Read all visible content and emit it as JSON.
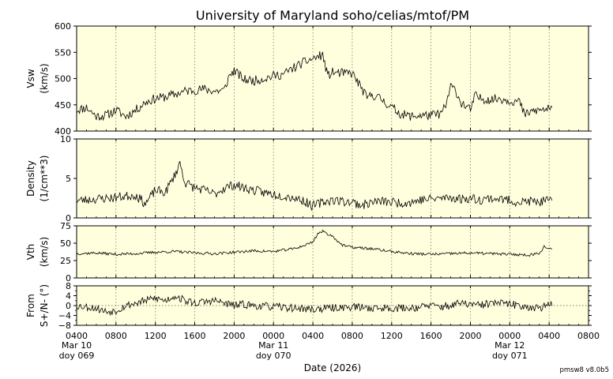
{
  "title": "University of Maryland  soho/celias/mtof/PM",
  "footer": "pmsw8 v8.0b5",
  "chart_data": {
    "type": "line",
    "xlabel": "Date (2026)",
    "x_unit": "hours from 2026-03-10 04:00",
    "xlim": [
      0,
      52
    ],
    "x_ticks": [
      0,
      4,
      8,
      12,
      16,
      20,
      24,
      28,
      32,
      36,
      40,
      44,
      48,
      52
    ],
    "x_tick_labels": [
      "0400",
      "0800",
      "1200",
      "1600",
      "2000",
      "0000",
      "0400",
      "0800",
      "1200",
      "1600",
      "2000",
      "0000",
      "0400",
      "0800"
    ],
    "date_labels": [
      {
        "x": 0,
        "lines": [
          "Mar 10",
          "doy 069"
        ]
      },
      {
        "x": 20,
        "lines": [
          "Mar 11",
          "doy 070"
        ]
      },
      {
        "x": 44,
        "lines": [
          "Mar 12",
          "doy 071"
        ]
      }
    ],
    "data_end_x": 48.3,
    "grid": "vertical dotted at every x tick",
    "background_color": "#ffffdd",
    "panels": [
      {
        "id": "vsw",
        "ylabel": [
          "Vsw",
          "(km/s)"
        ],
        "ylim": [
          400,
          600
        ],
        "yticks": [
          400,
          450,
          500,
          550,
          600
        ],
        "ytick_labels": [
          "400",
          "450",
          "500",
          "550",
          "600"
        ],
        "zero_line": false,
        "seed": 11,
        "noise": 9,
        "keypoints": [
          [
            0,
            440
          ],
          [
            1,
            445
          ],
          [
            2,
            428
          ],
          [
            3,
            430
          ],
          [
            4,
            440
          ],
          [
            5,
            428
          ],
          [
            6,
            440
          ],
          [
            7,
            455
          ],
          [
            8,
            462
          ],
          [
            9,
            465
          ],
          [
            10,
            470
          ],
          [
            11,
            476
          ],
          [
            12,
            478
          ],
          [
            13,
            480
          ],
          [
            14,
            476
          ],
          [
            15,
            478
          ],
          [
            15.5,
            505
          ],
          [
            16,
            515
          ],
          [
            17,
            498
          ],
          [
            18,
            496
          ],
          [
            19,
            500
          ],
          [
            20,
            505
          ],
          [
            21,
            508
          ],
          [
            22,
            520
          ],
          [
            23,
            530
          ],
          [
            24,
            538
          ],
          [
            25,
            545
          ],
          [
            25.5,
            505
          ],
          [
            26,
            512
          ],
          [
            27,
            510
          ],
          [
            28,
            510
          ],
          [
            29,
            480
          ],
          [
            29.5,
            462
          ],
          [
            30,
            470
          ],
          [
            31,
            460
          ],
          [
            32,
            445
          ],
          [
            33,
            432
          ],
          [
            34,
            428
          ],
          [
            35,
            430
          ],
          [
            36,
            430
          ],
          [
            37,
            433
          ],
          [
            37.5,
            448
          ],
          [
            38,
            485
          ],
          [
            38.5,
            478
          ],
          [
            39,
            455
          ],
          [
            40,
            440
          ],
          [
            40.5,
            468
          ],
          [
            41,
            462
          ],
          [
            42,
            460
          ],
          [
            43,
            462
          ],
          [
            44,
            458
          ],
          [
            45,
            456
          ],
          [
            45.5,
            430
          ],
          [
            46,
            436
          ],
          [
            47,
            440
          ],
          [
            48,
            442
          ],
          [
            48.3,
            440
          ]
        ]
      },
      {
        "id": "density",
        "ylabel": [
          "Density",
          "(1/cm**3)"
        ],
        "ylim": [
          0,
          10
        ],
        "yticks": [
          0,
          5,
          10
        ],
        "ytick_labels": [
          "0",
          "5",
          "10"
        ],
        "zero_line": false,
        "seed": 23,
        "noise": 0.6,
        "keypoints": [
          [
            0,
            2.2
          ],
          [
            2,
            2.4
          ],
          [
            4,
            2.6
          ],
          [
            6,
            2.9
          ],
          [
            7,
            1.8
          ],
          [
            8,
            3.5
          ],
          [
            9,
            3.2
          ],
          [
            10,
            5.5
          ],
          [
            10.5,
            7.0
          ],
          [
            11,
            4.5
          ],
          [
            12,
            3.8
          ],
          [
            13,
            3.5
          ],
          [
            14,
            3.0
          ],
          [
            15,
            3.8
          ],
          [
            16,
            4.2
          ],
          [
            17,
            3.8
          ],
          [
            18,
            3.5
          ],
          [
            19,
            3.2
          ],
          [
            20,
            3.0
          ],
          [
            22,
            2.6
          ],
          [
            23,
            2.2
          ],
          [
            24,
            1.5
          ],
          [
            25,
            2.0
          ],
          [
            26,
            2.3
          ],
          [
            27,
            2.1
          ],
          [
            28,
            2.0
          ],
          [
            29,
            1.6
          ],
          [
            30,
            2.0
          ],
          [
            31,
            2.1
          ],
          [
            32,
            2.0
          ],
          [
            33,
            1.9
          ],
          [
            34,
            2.0
          ],
          [
            35,
            2.3
          ],
          [
            36,
            2.4
          ],
          [
            37,
            2.5
          ],
          [
            38,
            2.6
          ],
          [
            39,
            2.4
          ],
          [
            40,
            2.5
          ],
          [
            41,
            2.3
          ],
          [
            42,
            2.5
          ],
          [
            43,
            2.4
          ],
          [
            44,
            2.2
          ],
          [
            45,
            2.0
          ],
          [
            46,
            2.1
          ],
          [
            47,
            2.0
          ],
          [
            48,
            2.2
          ],
          [
            48.3,
            2.0
          ]
        ]
      },
      {
        "id": "vth",
        "ylabel": [
          "Vth",
          "(km/s)"
        ],
        "ylim": [
          0,
          75
        ],
        "yticks": [
          0,
          25,
          50,
          75
        ],
        "ytick_labels": [
          "0",
          "25",
          "50",
          "75"
        ],
        "zero_line": false,
        "seed": 37,
        "noise": 2.0,
        "keypoints": [
          [
            0,
            35
          ],
          [
            2,
            36
          ],
          [
            4,
            34
          ],
          [
            6,
            35
          ],
          [
            8,
            37
          ],
          [
            10,
            38
          ],
          [
            12,
            36
          ],
          [
            14,
            35
          ],
          [
            16,
            37
          ],
          [
            18,
            39
          ],
          [
            20,
            38
          ],
          [
            22,
            42
          ],
          [
            23,
            46
          ],
          [
            24,
            52
          ],
          [
            24.5,
            64
          ],
          [
            25,
            67
          ],
          [
            26,
            60
          ],
          [
            27,
            47
          ],
          [
            28,
            44
          ],
          [
            30,
            42
          ],
          [
            32,
            38
          ],
          [
            34,
            35
          ],
          [
            36,
            34
          ],
          [
            38,
            35
          ],
          [
            40,
            36
          ],
          [
            42,
            35
          ],
          [
            44,
            34
          ],
          [
            46,
            33
          ],
          [
            47,
            36
          ],
          [
            47.5,
            45
          ],
          [
            48,
            42
          ],
          [
            48.3,
            40
          ]
        ]
      },
      {
        "id": "from",
        "ylabel": [
          "From",
          "S+/N- (°)"
        ],
        "ylim": [
          -8,
          8
        ],
        "yticks": [
          -8,
          -4,
          0,
          4,
          8
        ],
        "ytick_labels": [
          "−8",
          "−4",
          "0",
          "4",
          "8"
        ],
        "minor_yticks": [
          -6,
          -2,
          2,
          6
        ],
        "zero_line": true,
        "seed": 53,
        "noise": 1.6,
        "keypoints": [
          [
            0,
            0
          ],
          [
            2,
            -1
          ],
          [
            3,
            -2.5
          ],
          [
            4,
            -2
          ],
          [
            5,
            0
          ],
          [
            6,
            1
          ],
          [
            7,
            2
          ],
          [
            8,
            3
          ],
          [
            9,
            2
          ],
          [
            10,
            4
          ],
          [
            11,
            2
          ],
          [
            12,
            1
          ],
          [
            13,
            1.5
          ],
          [
            14,
            2
          ],
          [
            15,
            1
          ],
          [
            16,
            0
          ],
          [
            17,
            0.5
          ],
          [
            18,
            0
          ],
          [
            20,
            -0.5
          ],
          [
            22,
            -1
          ],
          [
            24,
            -1.5
          ],
          [
            26,
            -1
          ],
          [
            28,
            -0.5
          ],
          [
            30,
            -1
          ],
          [
            32,
            -1
          ],
          [
            34,
            -1
          ],
          [
            36,
            0
          ],
          [
            37,
            -0.5
          ],
          [
            38,
            0
          ],
          [
            39,
            1
          ],
          [
            40,
            0.5
          ],
          [
            41,
            0
          ],
          [
            42,
            1
          ],
          [
            43,
            1
          ],
          [
            44,
            0.5
          ],
          [
            45,
            0
          ],
          [
            46,
            -0.5
          ],
          [
            47,
            -1
          ],
          [
            48,
            0
          ],
          [
            48.3,
            0.5
          ]
        ]
      }
    ]
  }
}
